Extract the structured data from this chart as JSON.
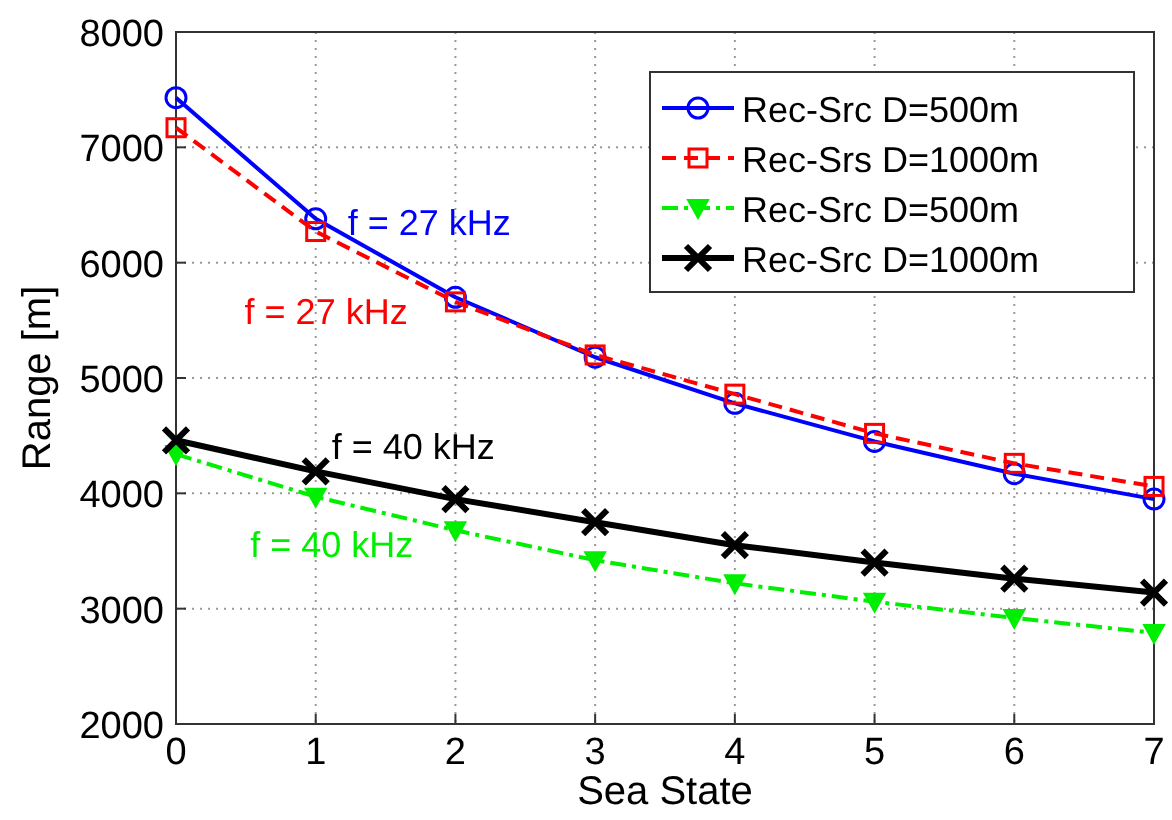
{
  "chart_data": {
    "type": "line",
    "xlabel": "Sea State",
    "ylabel": "Range [m]",
    "x": [
      0,
      1,
      2,
      3,
      4,
      5,
      6,
      7
    ],
    "xlim": [
      0,
      7
    ],
    "xticks": [
      0,
      1,
      2,
      3,
      4,
      5,
      6,
      7
    ],
    "ylim": [
      2000,
      8000
    ],
    "yticks": [
      2000,
      3000,
      4000,
      5000,
      6000,
      7000,
      8000
    ],
    "grid": true,
    "legend": "top right",
    "series": [
      {
        "name": "Rec-Src D=500m",
        "color": "#0000ff",
        "marker": "circle",
        "line_style": "solid",
        "values": [
          7430,
          6380,
          5700,
          5180,
          4780,
          4450,
          4170,
          3950
        ]
      },
      {
        "name": "Rec-Srs D=1000m",
        "color": "#ff0000",
        "marker": "square",
        "line_style": "dashed",
        "values": [
          7170,
          6270,
          5660,
          5200,
          4860,
          4520,
          4260,
          4060
        ]
      },
      {
        "name": "Rec-Src D=500m",
        "color": "#00ee00",
        "marker": "triangle",
        "line_style": "dashdot",
        "values": [
          4340,
          3970,
          3680,
          3420,
          3220,
          3060,
          2920,
          2790
        ]
      },
      {
        "name": "Rec-Src D=1000m",
        "color": "#000000",
        "marker": "cross",
        "line_style": "solid",
        "values": [
          4460,
          4190,
          3950,
          3750,
          3550,
          3400,
          3260,
          3140
        ]
      }
    ],
    "annotations": [
      "f = 27 kHz",
      "f = 27 kHz",
      "f = 40 kHz",
      "f = 40 kHz"
    ]
  }
}
